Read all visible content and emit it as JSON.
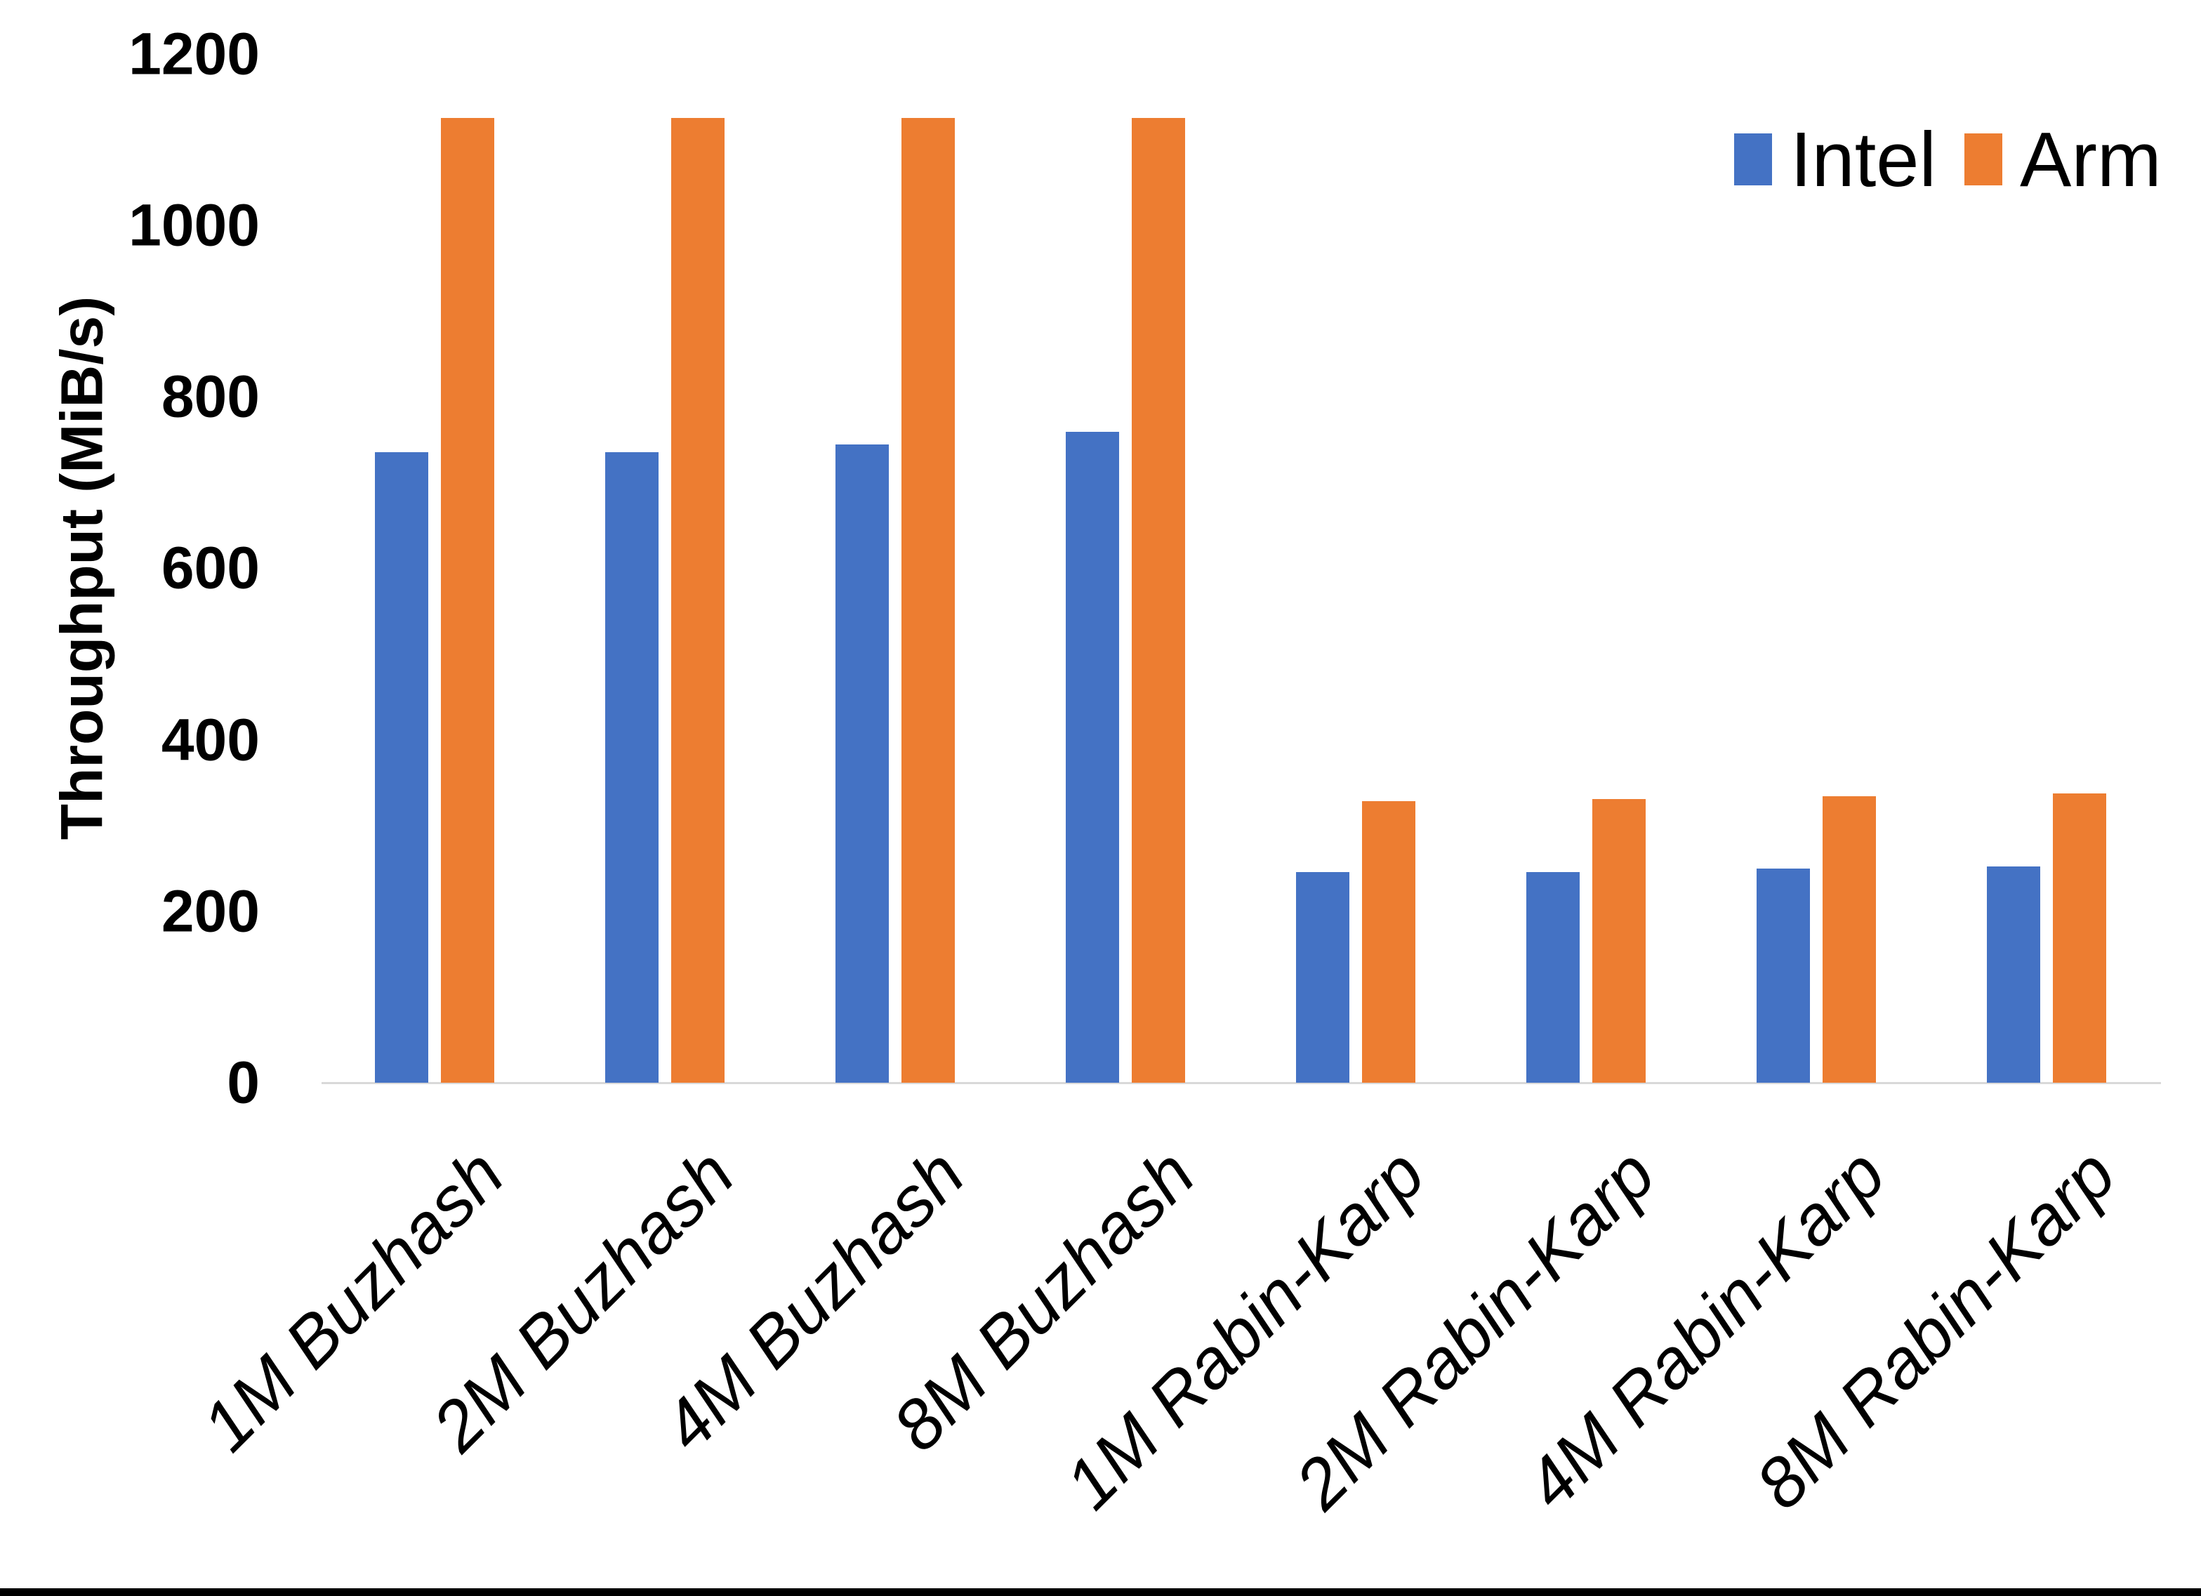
{
  "chart_data": {
    "type": "bar",
    "title": "",
    "xlabel": "",
    "ylabel": "Throughput (MiB/s)",
    "categories": [
      "1M Buzhash",
      "2M Buzhash",
      "4M Buzhash",
      "8M Buzhash",
      "1M Rabin-Karp",
      "2M Rabin-Karp",
      "4M Rabin-Karp",
      "8M Rabin-Karp"
    ],
    "series": [
      {
        "name": "Intel",
        "color": "#4472C4",
        "values": [
          735,
          735,
          744,
          759,
          246,
          246,
          250,
          252
        ]
      },
      {
        "name": "Arm",
        "color": "#ED7D31",
        "values": [
          1125,
          1125,
          1125,
          1125,
          328,
          331,
          334,
          337
        ]
      }
    ],
    "ylim": [
      0,
      1200
    ],
    "yticks": [
      0,
      200,
      400,
      600,
      800,
      1000,
      1200
    ],
    "grid": false,
    "legend_position": "top-right",
    "colors": {
      "axis_line": "#D9D9D9",
      "text": "#000000",
      "background": "#FFFFFF",
      "bottom_border": "#000000"
    }
  }
}
